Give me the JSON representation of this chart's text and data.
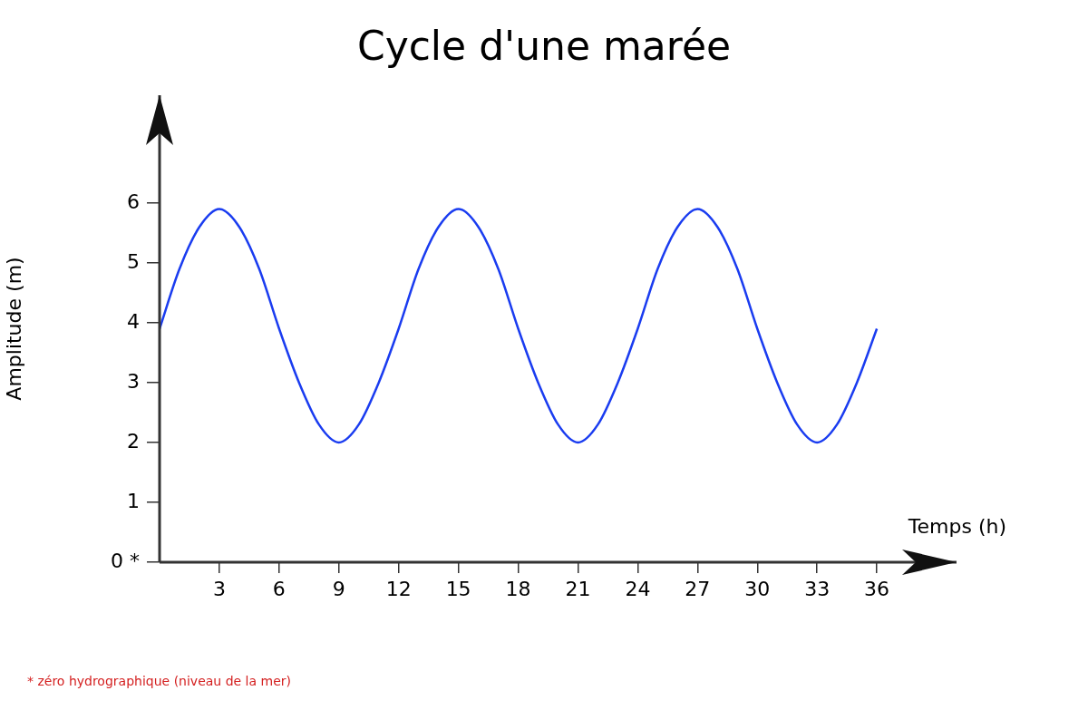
{
  "chart_data": {
    "type": "line",
    "title": "Cycle d'une marée",
    "xlabel": "Temps (h)",
    "ylabel": "Amplitude (m)",
    "annotations": [
      "* zéro hydrographique (niveau de la mer)"
    ],
    "x": [
      0,
      1,
      2,
      3,
      4,
      5,
      6,
      7,
      8,
      9,
      10,
      11,
      12,
      13,
      14,
      15,
      16,
      17,
      18,
      19,
      20,
      21,
      22,
      23,
      24,
      25,
      26,
      27,
      28,
      29,
      30,
      31,
      32,
      33,
      34,
      35,
      36
    ],
    "series": [
      {
        "color": "#1a3cf0",
        "values": [
          3.9,
          4.9,
          5.6,
          5.9,
          5.6,
          4.9,
          3.9,
          3.0,
          2.3,
          2.0,
          2.3,
          3.0,
          3.9,
          4.9,
          5.6,
          5.9,
          5.6,
          4.9,
          3.9,
          3.0,
          2.3,
          2.0,
          2.3,
          3.0,
          3.9,
          4.9,
          5.6,
          5.9,
          5.6,
          4.9,
          3.9,
          3.0,
          2.3,
          2.0,
          2.3,
          3.0,
          3.9
        ]
      }
    ],
    "xlim": [
      0,
      40
    ],
    "xticks": [
      3,
      6,
      9,
      12,
      15,
      18,
      21,
      24,
      27,
      30,
      33,
      36
    ],
    "ylim": [
      0,
      7.8
    ],
    "yticks": [
      {
        "value": 0,
        "label": "0 *"
      },
      1,
      2,
      3,
      4,
      5,
      6
    ],
    "grid": false,
    "legend": false,
    "marker": "none",
    "line_style": "solid"
  }
}
